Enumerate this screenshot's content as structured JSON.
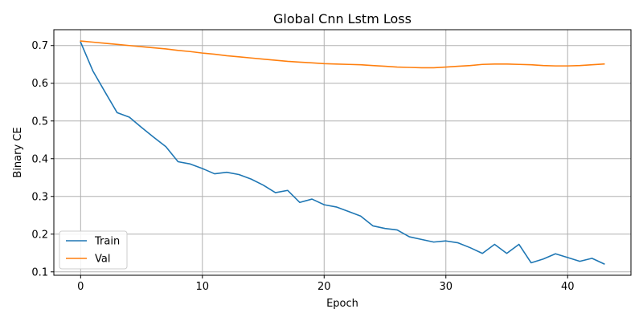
{
  "chart_data": {
    "type": "line",
    "title": "Global Cnn Lstm Loss",
    "xlabel": "Epoch",
    "ylabel": "Binary CE",
    "xlim": [
      -2.2,
      45.2
    ],
    "ylim": [
      0.091,
      0.742
    ],
    "xticks": [
      0,
      10,
      20,
      30,
      40
    ],
    "yticks": [
      0.1,
      0.2,
      0.3,
      0.4,
      0.5,
      0.6,
      0.7
    ],
    "grid": true,
    "legend": "lower-left",
    "x": [
      0,
      1,
      2,
      3,
      4,
      5,
      6,
      7,
      8,
      9,
      10,
      11,
      12,
      13,
      14,
      15,
      16,
      17,
      18,
      19,
      20,
      21,
      22,
      23,
      24,
      25,
      26,
      27,
      28,
      29,
      30,
      31,
      32,
      33,
      34,
      35,
      36,
      37,
      38,
      39,
      40,
      41,
      42,
      43
    ],
    "series": [
      {
        "name": "Train",
        "color": "#1f77b4",
        "values": [
          0.709,
          0.633,
          0.577,
          0.522,
          0.51,
          0.483,
          0.457,
          0.432,
          0.392,
          0.386,
          0.374,
          0.36,
          0.364,
          0.358,
          0.346,
          0.33,
          0.31,
          0.316,
          0.284,
          0.293,
          0.278,
          0.272,
          0.26,
          0.248,
          0.222,
          0.215,
          0.211,
          0.193,
          0.186,
          0.179,
          0.182,
          0.177,
          0.164,
          0.149,
          0.173,
          0.149,
          0.173,
          0.124,
          0.134,
          0.148,
          0.138,
          0.128,
          0.136,
          0.121
        ]
      },
      {
        "name": "Val",
        "color": "#ff7f0e",
        "values": [
          0.712,
          0.709,
          0.706,
          0.703,
          0.7,
          0.697,
          0.694,
          0.691,
          0.687,
          0.684,
          0.68,
          0.677,
          0.673,
          0.67,
          0.667,
          0.664,
          0.661,
          0.658,
          0.656,
          0.654,
          0.652,
          0.651,
          0.65,
          0.649,
          0.647,
          0.645,
          0.643,
          0.642,
          0.641,
          0.641,
          0.643,
          0.645,
          0.647,
          0.65,
          0.651,
          0.651,
          0.65,
          0.649,
          0.647,
          0.646,
          0.646,
          0.647,
          0.649,
          0.651
        ]
      }
    ]
  }
}
